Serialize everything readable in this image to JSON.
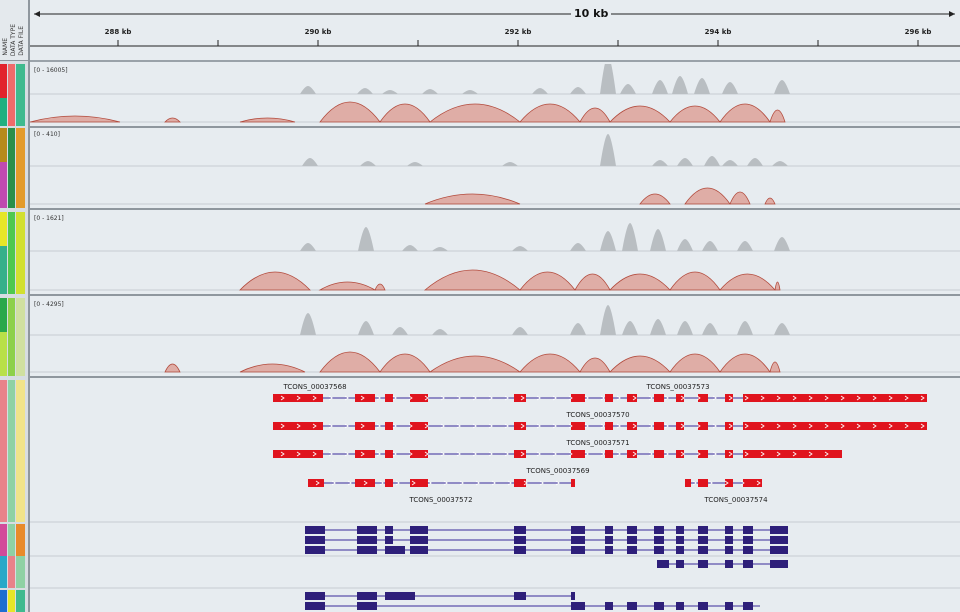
{
  "header_columns": [
    "NAME",
    "DATA TYPE",
    "DATA FILE"
  ],
  "ruler": {
    "span_label": "10 kb",
    "ticks": [
      "288 kb",
      "290 kb",
      "292 kb",
      "294 kb",
      "296 kb"
    ]
  },
  "tracks": [
    {
      "range": "[0 - 16005]"
    },
    {
      "range": "[0 - 410]"
    },
    {
      "range": "[0 - 1621]"
    },
    {
      "range": "[0 - 4295]"
    }
  ],
  "transcripts": [
    "TCONS_00037568",
    "TCONS_00037573",
    "TCONS_00037570",
    "TCONS_00037571",
    "TCONS_00037569",
    "TCONS_00037572",
    "TCONS_00037574"
  ],
  "colors": {
    "coverage": "#b9bec2",
    "junction": "#d97a6a",
    "junction_dark": "#b24a3c",
    "transcript_red": "#e0141e",
    "transcript_navy": "#2e1f7a",
    "background": "#e7ecf0"
  }
}
